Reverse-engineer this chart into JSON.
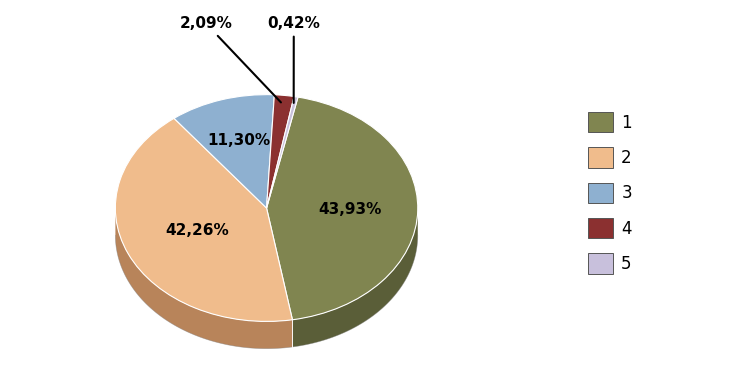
{
  "labels": [
    "1",
    "2",
    "3",
    "4",
    "5"
  ],
  "values": [
    43.93,
    42.26,
    11.3,
    2.09,
    0.42
  ],
  "colors": [
    "#808550",
    "#F0BC8C",
    "#8EB0D0",
    "#8B3030",
    "#C8C0DC"
  ],
  "shadow_colors": [
    "#5A5E38",
    "#B8845A",
    "#6A8AAA",
    "#6B2020",
    "#A8A0BC"
  ],
  "label_texts": [
    "43,93%",
    "42,26%",
    "11,30%",
    "2,09%",
    "0,42%"
  ],
  "startangle": 78,
  "figsize": [
    7.42,
    3.82
  ],
  "dpi": 100,
  "depth": 0.18,
  "yscale": 0.75
}
